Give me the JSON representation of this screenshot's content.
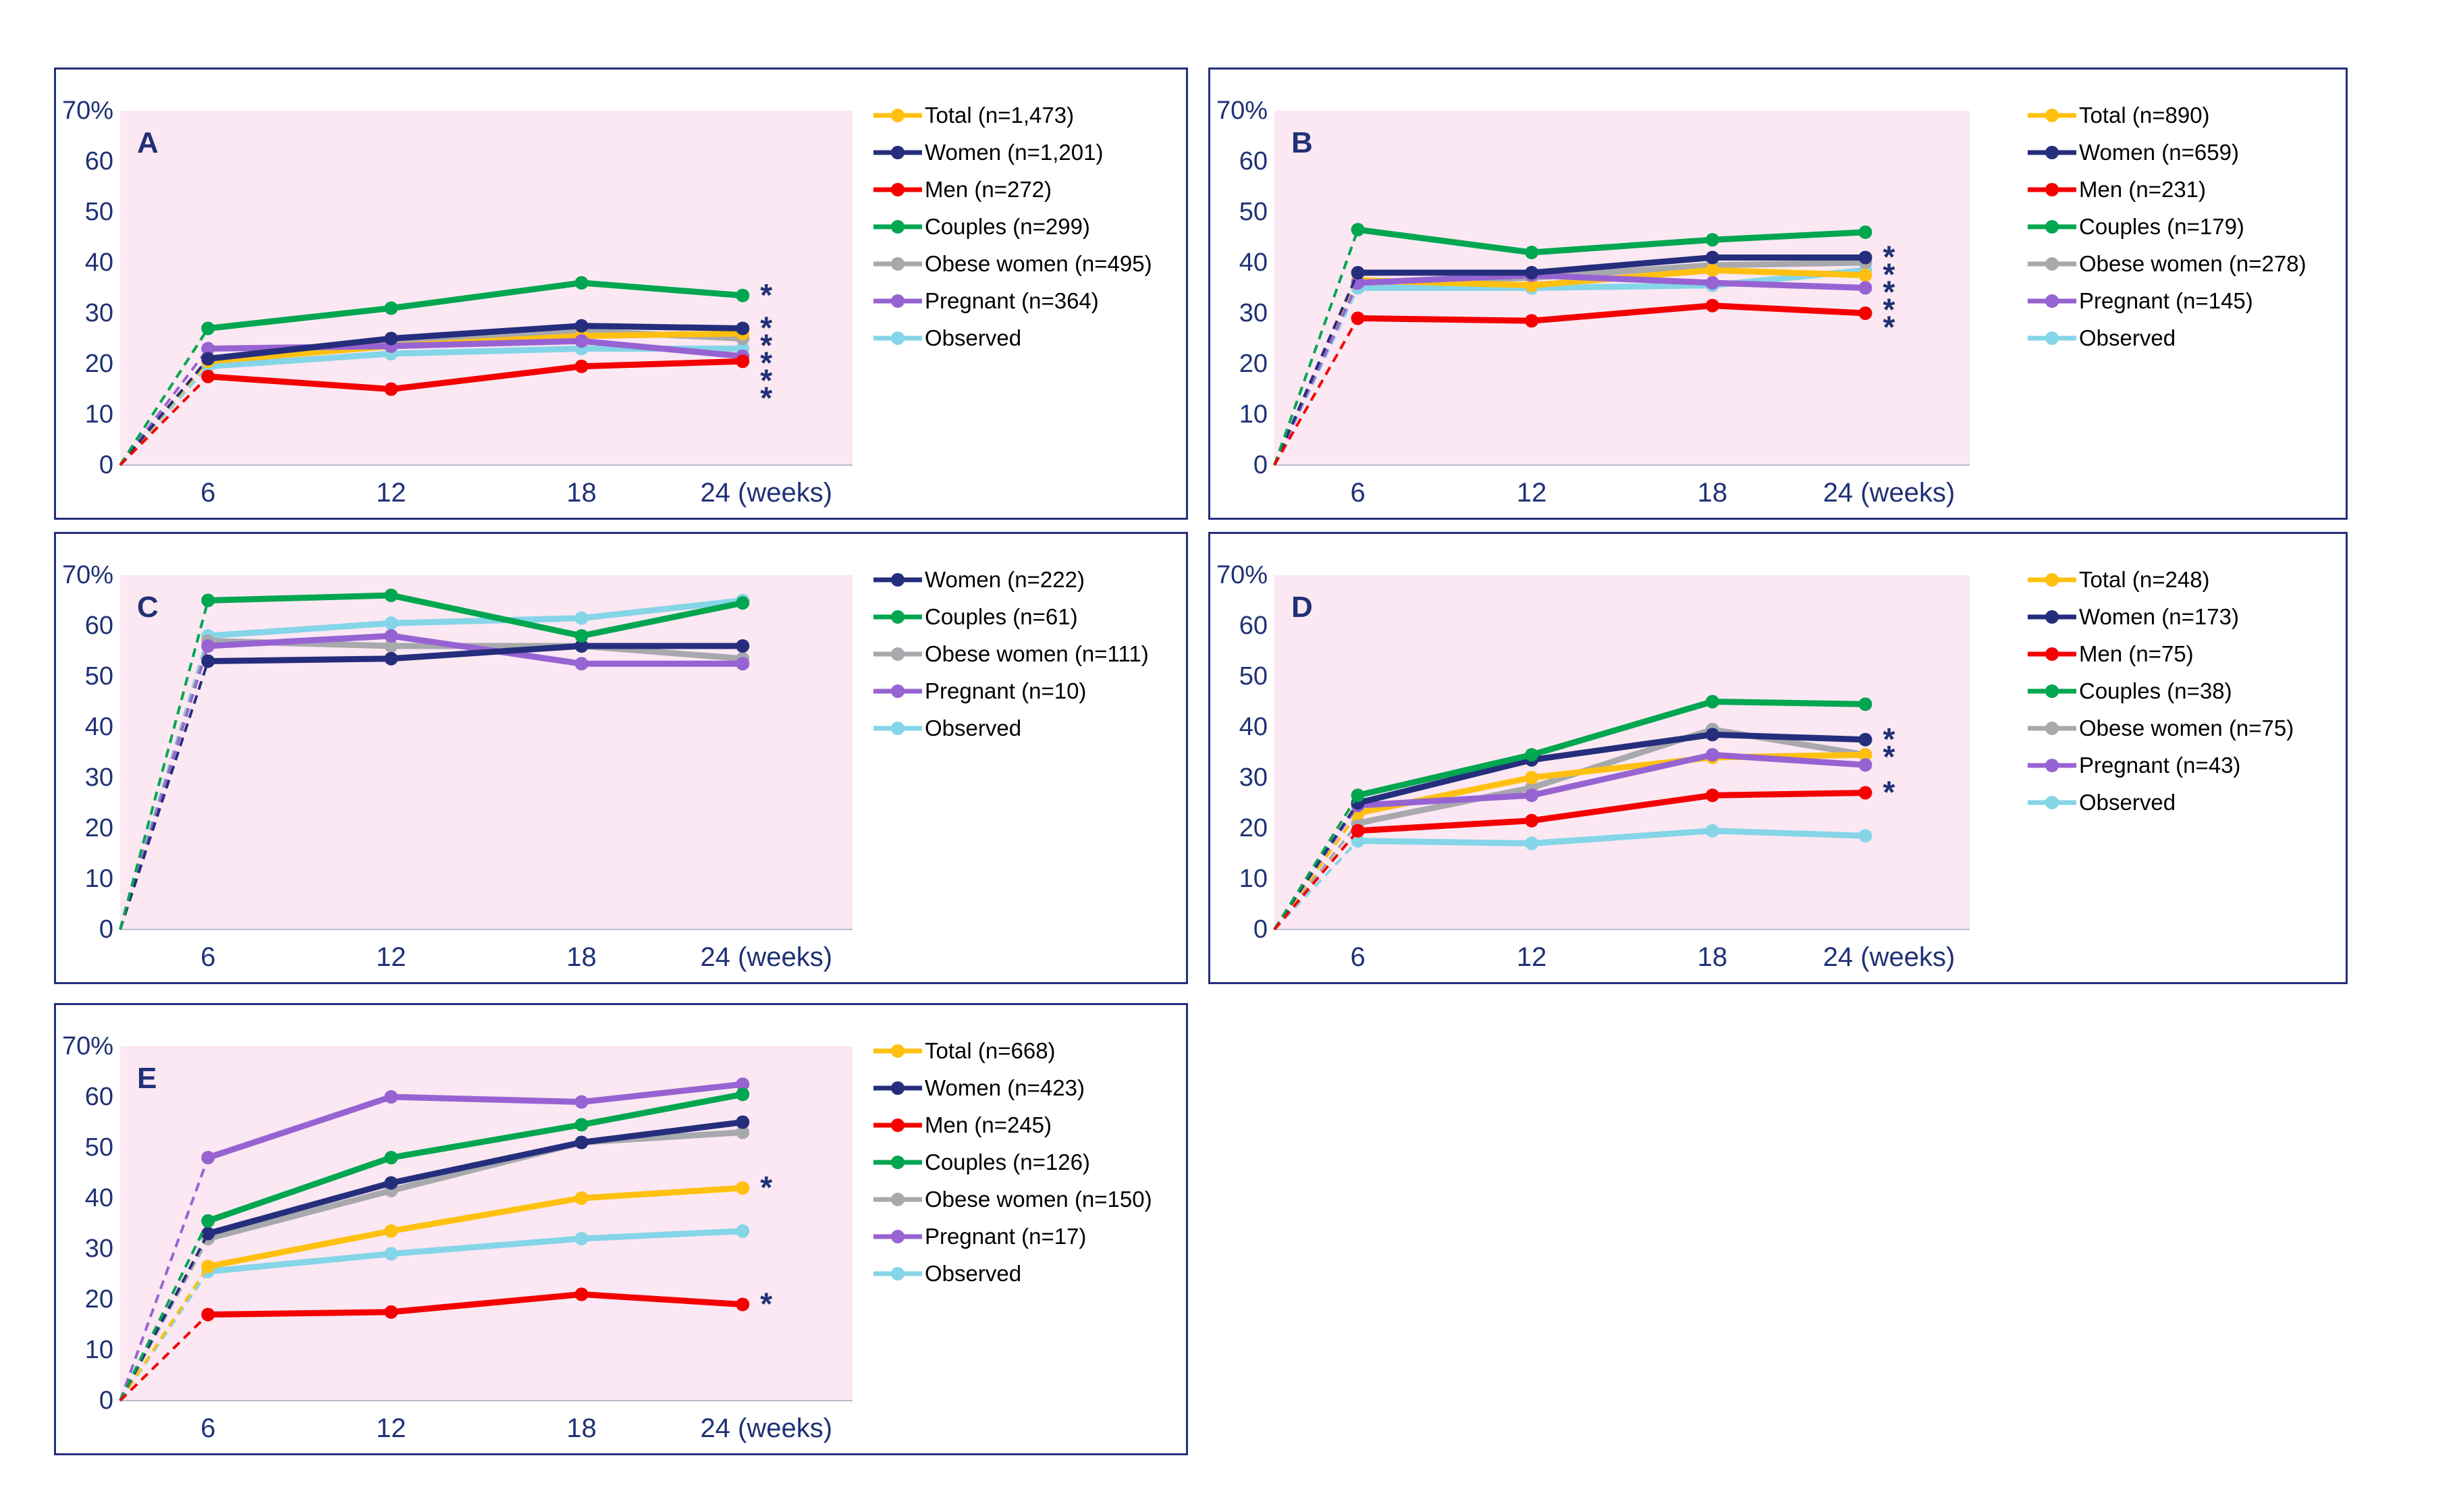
{
  "figure": {
    "background": "#ffffff",
    "border_color": "#252F7D",
    "plot_bg": "#FBE8F2",
    "axis_text_color": "#203175",
    "asterisk_color": "#203175",
    "y_tick_labels": [
      "70%",
      "60",
      "50",
      "40",
      "30",
      "20",
      "10",
      "0"
    ],
    "x_tick_labels": [
      "6",
      "12",
      "18",
      "24 (weeks)"
    ],
    "series_colors": {
      "gold": "#FFC010",
      "navy": "#252E7C",
      "red": "#F40000",
      "green": "#00A650",
      "gray": "#A7A9AC",
      "purple": "#9763D2",
      "lightblue": "#85D5E8"
    }
  },
  "chart_data": [
    {
      "panel": "A",
      "type": "line",
      "x": [
        6,
        12,
        18,
        24
      ],
      "x_tick_labels": [
        "6",
        "12",
        "18",
        "24 (weeks)"
      ],
      "ylabel": "%",
      "ylim": [
        0,
        70
      ],
      "grid": false,
      "legend_position": "right",
      "series": [
        {
          "group": "Total",
          "name": "Total (n=1,473)",
          "color": "gold",
          "values": [
            20.5,
            23.5,
            25.5,
            26
          ],
          "sig": true
        },
        {
          "group": "Women",
          "name": "Women (n=1,201)",
          "color": "navy",
          "values": [
            21,
            25,
            27.5,
            27
          ],
          "sig": true
        },
        {
          "group": "Men",
          "name": "Men (n=272)",
          "color": "red",
          "values": [
            17.5,
            15,
            19.5,
            20.5
          ],
          "sig": true
        },
        {
          "group": "Couples",
          "name": "Couples (n=299)",
          "color": "green",
          "values": [
            27,
            31,
            36,
            33.5
          ],
          "sig": true
        },
        {
          "group": "Obese women",
          "name": "Obese women (n=495)",
          "color": "gray",
          "values": [
            21,
            24.5,
            26.5,
            25
          ],
          "sig": true
        },
        {
          "group": "Pregnant",
          "name": "Pregnant (n=364)",
          "color": "purple",
          "values": [
            23,
            23.5,
            24.5,
            21.5
          ],
          "sig": true
        },
        {
          "group": "Observed",
          "name": "Observed",
          "color": "lightblue",
          "values": [
            19.5,
            22,
            23,
            23
          ],
          "sig": false
        }
      ]
    },
    {
      "panel": "B",
      "type": "line",
      "x": [
        6,
        12,
        18,
        24
      ],
      "x_tick_labels": [
        "6",
        "12",
        "18",
        "24 (weeks)"
      ],
      "ylabel": "%",
      "ylim": [
        0,
        70
      ],
      "grid": false,
      "legend_position": "right",
      "series": [
        {
          "group": "Total",
          "name": "Total (n=890)",
          "color": "gold",
          "values": [
            36.5,
            35.5,
            38.5,
            37.5
          ],
          "sig": true
        },
        {
          "group": "Women",
          "name": "Women (n=659)",
          "color": "navy",
          "values": [
            38,
            38,
            41,
            41
          ],
          "sig": true
        },
        {
          "group": "Men",
          "name": "Men (n=231)",
          "color": "red",
          "values": [
            29,
            28.5,
            31.5,
            30
          ],
          "sig": true
        },
        {
          "group": "Couples",
          "name": "Couples (n=179)",
          "color": "green",
          "values": [
            46.5,
            42,
            44.5,
            46
          ],
          "sig": false
        },
        {
          "group": "Obese women",
          "name": "Obese women (n=278)",
          "color": "gray",
          "values": [
            36,
            37,
            39.5,
            40
          ],
          "sig": true
        },
        {
          "group": "Pregnant",
          "name": "Pregnant (n=145)",
          "color": "purple",
          "values": [
            36,
            37.5,
            36,
            35
          ],
          "sig": true
        },
        {
          "group": "Observed",
          "name": "Observed",
          "color": "lightblue",
          "values": [
            35,
            35,
            35.5,
            38.5
          ],
          "sig": false
        }
      ]
    },
    {
      "panel": "C",
      "type": "line",
      "x": [
        6,
        12,
        18,
        24
      ],
      "x_tick_labels": [
        "6",
        "12",
        "18",
        "24 (weeks)"
      ],
      "ylabel": "%",
      "ylim": [
        0,
        70
      ],
      "grid": false,
      "legend_position": "right",
      "series": [
        {
          "group": "Women",
          "name": "Women (n=222)",
          "color": "navy",
          "values": [
            53,
            53.5,
            56,
            56
          ],
          "sig": false
        },
        {
          "group": "Couples",
          "name": "Couples (n=61)",
          "color": "green",
          "values": [
            65,
            66,
            58,
            64.5
          ],
          "sig": false
        },
        {
          "group": "Obese women",
          "name": "Obese women (n=111)",
          "color": "gray",
          "values": [
            57,
            56,
            56,
            53.5
          ],
          "sig": false
        },
        {
          "group": "Pregnant",
          "name": "Pregnant (n=10)",
          "color": "purple",
          "values": [
            56,
            58,
            52.5,
            52.5
          ],
          "sig": false
        },
        {
          "group": "Observed",
          "name": "Observed",
          "color": "lightblue",
          "values": [
            58,
            60.5,
            61.5,
            65
          ],
          "sig": false
        }
      ]
    },
    {
      "panel": "D",
      "type": "line",
      "x": [
        6,
        12,
        18,
        24
      ],
      "x_tick_labels": [
        "6",
        "12",
        "18",
        "24 (weeks)"
      ],
      "ylabel": "%",
      "ylim": [
        0,
        70
      ],
      "grid": false,
      "legend_position": "right",
      "series": [
        {
          "group": "Total",
          "name": "Total (n=248)",
          "color": "gold",
          "values": [
            23,
            30,
            34,
            34.5
          ],
          "sig": true
        },
        {
          "group": "Women",
          "name": "Women (n=173)",
          "color": "navy",
          "values": [
            25,
            33.5,
            38.5,
            37.5
          ],
          "sig": true
        },
        {
          "group": "Men",
          "name": "Men (n=75)",
          "color": "red",
          "values": [
            19.5,
            21.5,
            26.5,
            27
          ],
          "sig": true
        },
        {
          "group": "Couples",
          "name": "Couples (n=38)",
          "color": "green",
          "values": [
            26.5,
            34.5,
            45,
            44.5
          ],
          "sig": false
        },
        {
          "group": "Obese women",
          "name": "Obese women (n=75)",
          "color": "gray",
          "values": [
            21,
            28,
            39.5,
            34.5
          ],
          "sig": false
        },
        {
          "group": "Pregnant",
          "name": "Pregnant (n=43)",
          "color": "purple",
          "values": [
            24.5,
            26.5,
            34.5,
            32.5
          ],
          "sig": false
        },
        {
          "group": "Observed",
          "name": "Observed",
          "color": "lightblue",
          "values": [
            17.5,
            17,
            19.5,
            18.5
          ],
          "sig": false
        }
      ]
    },
    {
      "panel": "E",
      "type": "line",
      "x": [
        6,
        12,
        18,
        24
      ],
      "x_tick_labels": [
        "6",
        "12",
        "18",
        "24 (weeks)"
      ],
      "ylabel": "%",
      "ylim": [
        0,
        70
      ],
      "grid": false,
      "legend_position": "right",
      "series": [
        {
          "group": "Total",
          "name": "Total (n=668)",
          "color": "gold",
          "values": [
            26.5,
            33.5,
            40,
            42
          ],
          "sig": true
        },
        {
          "group": "Women",
          "name": "Women (n=423)",
          "color": "navy",
          "values": [
            33,
            43,
            51,
            55
          ],
          "sig": false
        },
        {
          "group": "Men",
          "name": "Men (n=245)",
          "color": "red",
          "values": [
            17,
            17.5,
            21,
            19
          ],
          "sig": true
        },
        {
          "group": "Couples",
          "name": "Couples (n=126)",
          "color": "green",
          "values": [
            35.5,
            48,
            54.5,
            60.5
          ],
          "sig": false
        },
        {
          "group": "Obese women",
          "name": "Obese women (n=150)",
          "color": "gray",
          "values": [
            32,
            41.5,
            51,
            53
          ],
          "sig": false
        },
        {
          "group": "Pregnant",
          "name": "Pregnant (n=17)",
          "color": "purple",
          "values": [
            48,
            60,
            59,
            62.5
          ],
          "sig": false
        },
        {
          "group": "Observed",
          "name": "Observed",
          "color": "lightblue",
          "values": [
            25.5,
            29,
            32,
            33.5
          ],
          "sig": false
        }
      ]
    }
  ]
}
